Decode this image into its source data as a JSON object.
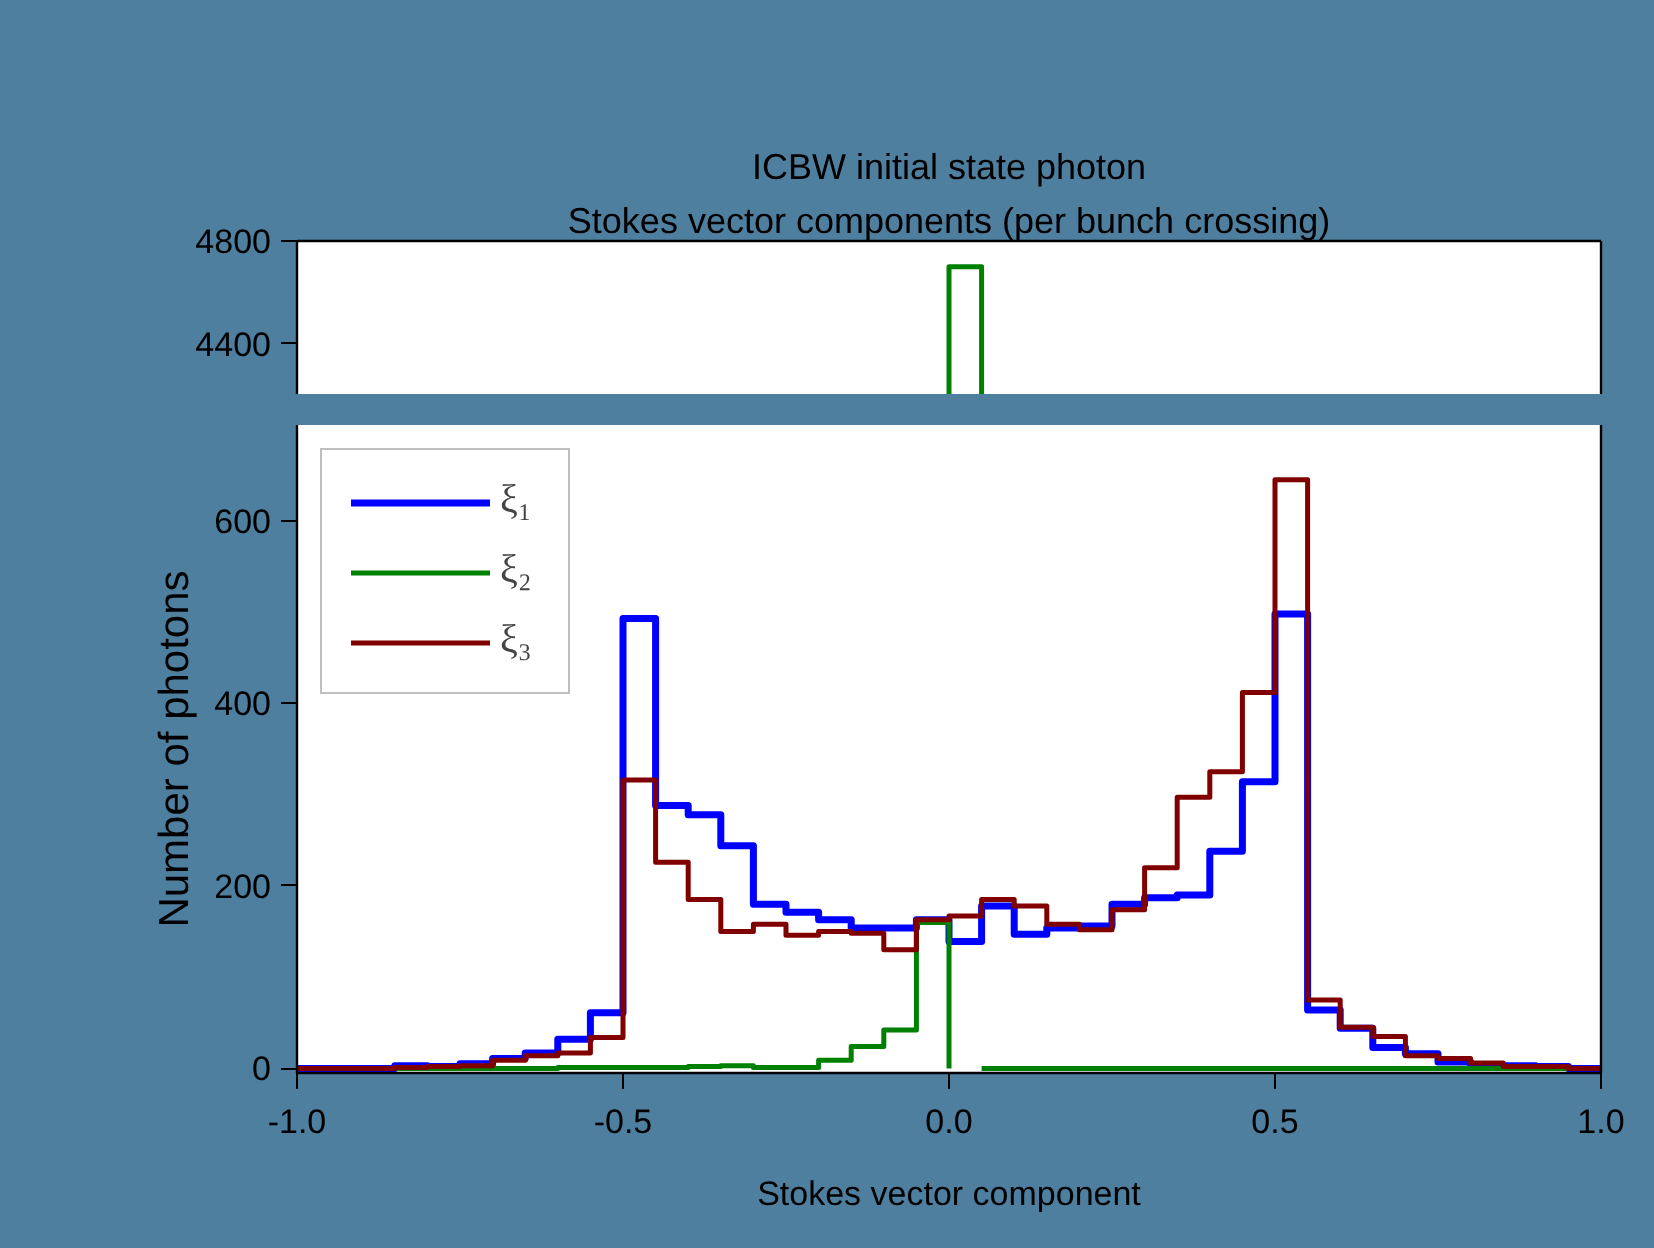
{
  "chart_data": [
    {
      "type": "histogram",
      "title": "ICBW initial state photon",
      "subtitle": "Stokes vector components (per bunch crossing)",
      "bins": [
        0,
        0.05
      ],
      "xlim": [
        -1,
        1
      ],
      "ylim": [
        4200,
        4800
      ],
      "yticks": [
        4400,
        4800
      ],
      "tick_labels": "y",
      "grid": false,
      "series": [
        {
          "color": "#008000",
          "values": [
            4700
          ]
        }
      ]
    },
    {
      "type": "histogram",
      "xlabel": "Stokes vector component",
      "ylabel": "Number of photons",
      "xlim": [
        -1,
        1
      ],
      "ylim": [
        -5,
        705
      ],
      "xticks": [
        {
          "value": -1,
          "label": "-1.0"
        },
        {
          "value": -0.5,
          "label": "-0.5"
        },
        {
          "value": 0,
          "label": "0.0"
        },
        {
          "value": 0.5,
          "label": "0.5"
        },
        {
          "value": 1,
          "label": "1.0"
        }
      ],
      "yticks": [
        0,
        200,
        400,
        600
      ],
      "grid": false,
      "legend": "top left",
      "bins": [
        -1.0,
        -0.95,
        -0.9,
        -0.85,
        -0.8,
        -0.75,
        -0.7,
        -0.65,
        -0.6,
        -0.55,
        -0.5,
        -0.45,
        -0.4,
        -0.35,
        -0.3,
        -0.25,
        -0.2,
        -0.15,
        -0.1,
        -0.05,
        0.0,
        0.05,
        0.1,
        0.15,
        0.2,
        0.25,
        0.3,
        0.35,
        0.4,
        0.45,
        0.5,
        0.55,
        0.6,
        0.65,
        0.7,
        0.75,
        0.8,
        0.85,
        0.9,
        0.95,
        1.0
      ],
      "series": [
        {
          "name": "ξ₁",
          "color": "#0000ff",
          "values": [
            0,
            0,
            0,
            3,
            2,
            5,
            11,
            17,
            32,
            61,
            493,
            288,
            278,
            244,
            180,
            171,
            163,
            154,
            154,
            163,
            139,
            178,
            147,
            154,
            156,
            180,
            187,
            190,
            238,
            314,
            498,
            64,
            44,
            23,
            16,
            7,
            4,
            3,
            2,
            0
          ]
        },
        {
          "name": "ξ₂",
          "color": "#008000",
          "bins": [
            -1.0,
            -0.95,
            -0.9,
            -0.85,
            -0.8,
            -0.75,
            -0.7,
            -0.65,
            -0.6,
            -0.55,
            -0.5,
            -0.45,
            -0.4,
            -0.35,
            -0.3,
            -0.25,
            -0.2,
            -0.15,
            -0.1,
            -0.05,
            0.0
          ],
          "values": [
            0,
            0,
            0,
            0,
            0,
            0,
            0,
            0,
            1,
            1,
            1,
            1,
            2,
            3,
            1,
            1,
            9,
            24,
            42,
            160
          ]
        },
        {
          "color": "#008000",
          "bins": [
            0.05,
            0.1,
            0.15,
            0.2,
            0.25,
            0.3,
            0.35,
            0.4,
            0.45,
            0.5,
            0.55,
            0.6,
            0.65,
            0.7,
            0.75,
            0.8,
            0.85,
            0.9,
            0.95,
            1.0
          ],
          "values": [
            0,
            0,
            0,
            0,
            0,
            0,
            0,
            0,
            0,
            0,
            0,
            0,
            0,
            0,
            0,
            0,
            0,
            0,
            0
          ]
        },
        {
          "name": "ξ₃",
          "color": "#800000",
          "values": [
            0,
            0,
            0,
            1,
            2,
            3,
            9,
            14,
            17,
            34,
            316,
            226,
            185,
            150,
            158,
            146,
            150,
            148,
            130,
            163,
            167,
            185,
            178,
            158,
            152,
            174,
            220,
            297,
            325,
            412,
            645,
            75,
            45,
            35,
            14,
            11,
            6,
            2,
            2,
            0
          ]
        }
      ]
    }
  ]
}
